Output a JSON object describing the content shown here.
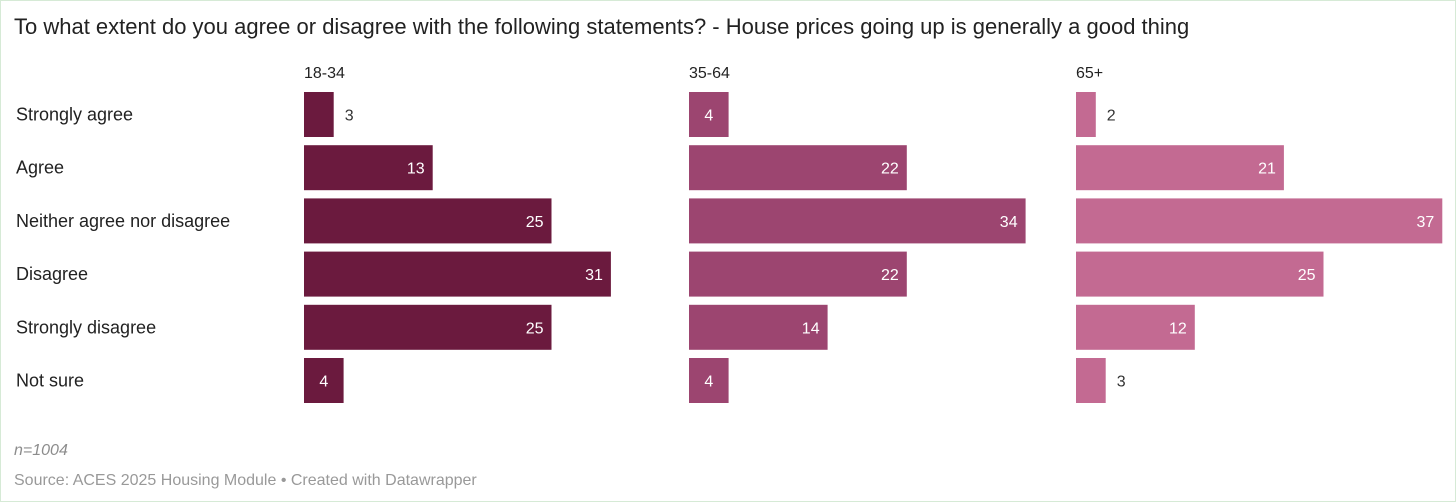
{
  "chart_data": {
    "type": "bar",
    "orientation": "horizontal",
    "title": "To what extent do you agree or disagree with the following statements? - House prices going up is generally a good thing",
    "categories": [
      "Strongly agree",
      "Agree",
      "Neither agree nor disagree",
      "Disagree",
      "Strongly disagree",
      "Not sure"
    ],
    "series": [
      {
        "name": "18-34",
        "values": [
          3,
          13,
          25,
          31,
          25,
          4
        ],
        "color": "#6b1a3e"
      },
      {
        "name": "35-64",
        "values": [
          4,
          22,
          34,
          22,
          14,
          4
        ],
        "color": "#9c4570"
      },
      {
        "name": "65+",
        "values": [
          2,
          21,
          37,
          25,
          12,
          3
        ],
        "color": "#c36a92"
      }
    ],
    "xlim": [
      0,
      37
    ],
    "grid": false,
    "legend": "column headers"
  },
  "footer": {
    "n": "n=1004",
    "source": "Source: ACES 2025 Housing Module • Created with Datawrapper"
  }
}
